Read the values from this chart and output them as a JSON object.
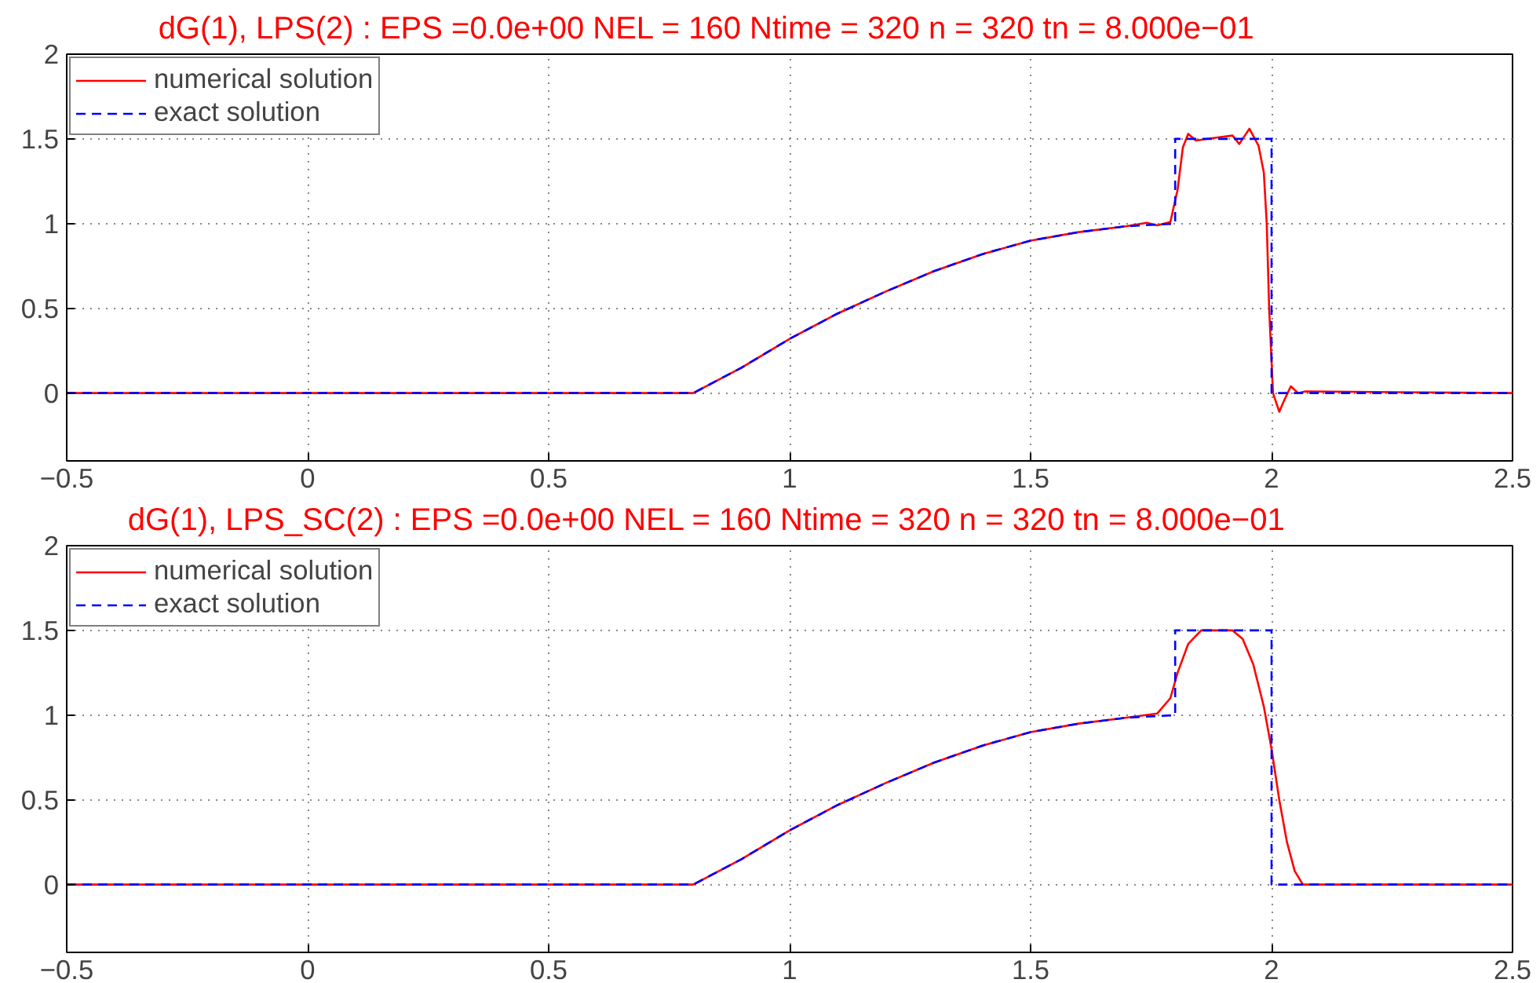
{
  "chart_data": [
    {
      "type": "line",
      "title": "dG(1), LPS(2) :     EPS =0.0e+00   NEL = 160   Ntime =  320    n = 320     tn =    8.000e−01",
      "xlim": [
        -0.5,
        2.5
      ],
      "ylim": [
        -0.4,
        2
      ],
      "xticks": [
        {
          "value": -0.5,
          "label": "−0.5"
        },
        0,
        0.5,
        1,
        1.5,
        2,
        2.5
      ],
      "yticks": [
        0,
        0.5,
        1,
        1.5,
        2
      ],
      "grid": true,
      "legend": "top left",
      "series": [
        {
          "name": "numerical solution",
          "color": "#ff0000",
          "line_style": "solid",
          "x": [
            -0.5,
            0.8,
            0.9,
            1.0,
            1.1,
            1.2,
            1.3,
            1.4,
            1.5,
            1.6,
            1.7,
            1.741,
            1.763,
            1.79,
            1.805,
            1.816,
            1.827,
            1.843,
            1.865,
            1.892,
            1.919,
            1.933,
            1.954,
            1.973,
            1.984,
            1.99,
            1.995,
            2.003,
            2.016,
            2.025,
            2.04,
            2.055,
            2.07,
            2.5
          ],
          "values": [
            0,
            0,
            0.15,
            0.32,
            0.47,
            0.6,
            0.72,
            0.82,
            0.9,
            0.95,
            0.985,
            1.005,
            0.99,
            1.01,
            1.2,
            1.45,
            1.53,
            1.49,
            1.5,
            1.51,
            1.52,
            1.47,
            1.56,
            1.46,
            1.3,
            1.0,
            0.5,
            0.0,
            -0.11,
            -0.05,
            0.04,
            0.0,
            0.01,
            0
          ]
        },
        {
          "name": "exact solution",
          "color": "#0000ff",
          "line_style": "dashed",
          "x": [
            -0.5,
            0.8,
            0.9,
            1.0,
            1.1,
            1.2,
            1.3,
            1.4,
            1.5,
            1.6,
            1.7,
            1.8,
            1.8,
            2.0,
            2.0,
            2.5
          ],
          "values": [
            0,
            0,
            0.15,
            0.32,
            0.47,
            0.6,
            0.72,
            0.82,
            0.9,
            0.95,
            0.985,
            1.0,
            1.5,
            1.5,
            0,
            0
          ]
        }
      ]
    },
    {
      "type": "line",
      "title": "dG(1), LPS_SC(2) :     EPS =0.0e+00   NEL = 160   Ntime =  320    n = 320     tn =    8.000e−01",
      "xlim": [
        -0.5,
        2.5
      ],
      "ylim": [
        -0.4,
        2
      ],
      "xticks": [
        {
          "value": -0.5,
          "label": "−0.5"
        },
        0,
        0.5,
        1,
        1.5,
        2,
        2.5
      ],
      "yticks": [
        0,
        0.5,
        1,
        1.5,
        2
      ],
      "grid": true,
      "legend": "top left",
      "series": [
        {
          "name": "numerical solution",
          "color": "#ff0000",
          "line_style": "solid",
          "x": [
            -0.5,
            0.8,
            0.9,
            1.0,
            1.1,
            1.2,
            1.3,
            1.4,
            1.5,
            1.6,
            1.7,
            1.763,
            1.79,
            1.805,
            1.827,
            1.854,
            1.919,
            1.94,
            1.962,
            1.984,
            2.0,
            2.016,
            2.032,
            2.048,
            2.065,
            2.5
          ],
          "values": [
            0,
            0,
            0.15,
            0.32,
            0.47,
            0.6,
            0.72,
            0.82,
            0.9,
            0.95,
            0.985,
            1.01,
            1.1,
            1.25,
            1.42,
            1.5,
            1.5,
            1.45,
            1.3,
            1.05,
            0.8,
            0.5,
            0.25,
            0.08,
            0.0,
            0
          ]
        },
        {
          "name": "exact solution",
          "color": "#0000ff",
          "line_style": "dashed",
          "x": [
            -0.5,
            0.8,
            0.9,
            1.0,
            1.1,
            1.2,
            1.3,
            1.4,
            1.5,
            1.6,
            1.7,
            1.8,
            1.8,
            2.0,
            2.0,
            2.5
          ],
          "values": [
            0,
            0,
            0.15,
            0.32,
            0.47,
            0.6,
            0.72,
            0.82,
            0.9,
            0.95,
            0.985,
            1.0,
            1.5,
            1.5,
            0,
            0
          ]
        }
      ]
    }
  ]
}
